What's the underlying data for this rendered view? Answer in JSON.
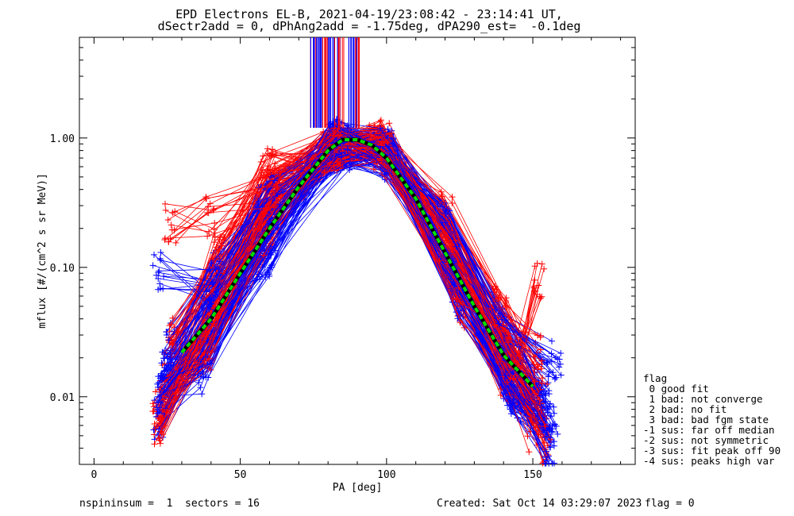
{
  "title": {
    "line1": "EPD Electrons EL-B, 2021-04-19/23:08:42 - 23:14:41 UT,",
    "line2": "dSectr2add = 0, dPhAng2add = -1.75deg, dPA290_est=  -0.1deg"
  },
  "footer": {
    "left": "nspininsum =  1  sectors = 16",
    "center": "Created: Sat Oct 14 03:29:07 2023",
    "right": "flag = 0"
  },
  "legend": {
    "title": "flag",
    "items": [
      " 0 good fit",
      " 1 bad: not converge",
      " 2 bad: no fit",
      " 3 bad: bad fgm state",
      "-1 sus: far off median",
      "-2 sus: not symmetric",
      "-3 sus: fit peak off 90",
      "-4 sus: peaks high var"
    ]
  },
  "colors": {
    "series_red": "#ff0000",
    "series_blue": "#0000ff",
    "fit_green": "#00dd00",
    "fit_black": "#000000"
  },
  "chart_data": {
    "type": "line",
    "xlabel": "PA [deg]",
    "ylabel": "mflux [#/(cm^2 s sr MeV)]",
    "xlim": [
      -5,
      185
    ],
    "ylim": [
      0.003,
      6.0
    ],
    "yscale": "log",
    "xticks": [
      0,
      50,
      100,
      150
    ],
    "xtick_labels": [
      "0",
      "50",
      "100",
      "150"
    ],
    "yticks": [
      0.01,
      0.1,
      1.0
    ],
    "ytick_labels": [
      "0.01",
      "0.10",
      "1.00"
    ],
    "series": [
      {
        "color": "red",
        "x": [
          22,
          38,
          60,
          82,
          98,
          120,
          140,
          152
        ],
        "y": [
          0.0065,
          0.024,
          0.18,
          0.85,
          0.9,
          0.16,
          0.022,
          0.006
        ]
      },
      {
        "color": "blue",
        "x": [
          23,
          40,
          61,
          83,
          100,
          122,
          141,
          153
        ],
        "y": [
          0.012,
          0.05,
          0.3,
          0.9,
          0.78,
          0.13,
          0.016,
          0.011
        ]
      },
      {
        "color": "red",
        "x": [
          24,
          39,
          58,
          84,
          97,
          119,
          138,
          151
        ],
        "y": [
          0.009,
          0.035,
          0.22,
          0.8,
          0.85,
          0.2,
          0.03,
          0.008
        ]
      },
      {
        "color": "blue",
        "x": [
          25,
          41,
          62,
          82,
          101,
          123,
          142,
          154
        ],
        "y": [
          0.016,
          0.07,
          0.35,
          0.95,
          0.72,
          0.1,
          0.012,
          0.007
        ]
      },
      {
        "color": "red",
        "x": [
          26,
          42,
          59,
          85,
          99,
          121,
          139,
          150
        ],
        "y": [
          0.02,
          0.1,
          0.5,
          0.9,
          0.88,
          0.24,
          0.04,
          0.012
        ]
      },
      {
        "color": "blue",
        "x": [
          22,
          39,
          60,
          86,
          100,
          124,
          143,
          155
        ],
        "y": [
          0.007,
          0.03,
          0.15,
          0.82,
          0.7,
          0.08,
          0.01,
          0.005
        ]
      },
      {
        "color": "red",
        "x": [
          27,
          43,
          61,
          80,
          96,
          118,
          137,
          152
        ],
        "y": [
          0.03,
          0.13,
          0.6,
          0.78,
          0.95,
          0.3,
          0.05,
          0.02
        ]
      },
      {
        "color": "blue",
        "x": [
          24,
          40,
          58,
          81,
          102,
          125,
          144,
          156
        ],
        "y": [
          0.011,
          0.045,
          0.12,
          0.88,
          0.68,
          0.06,
          0.009,
          0.004
        ]
      },
      {
        "color": "red",
        "x": [
          23,
          41,
          62,
          84,
          100,
          120,
          140,
          153
        ],
        "y": [
          0.008,
          0.06,
          0.4,
          0.86,
          0.82,
          0.18,
          0.025,
          0.009
        ]
      },
      {
        "color": "blue",
        "x": [
          25,
          38,
          59,
          83,
          99,
          121,
          145,
          157
        ],
        "y": [
          0.014,
          0.02,
          0.1,
          0.92,
          0.8,
          0.2,
          0.02,
          0.006
        ]
      },
      {
        "color": "red",
        "x": [
          22,
          40,
          57,
          82,
          98,
          122,
          141,
          150
        ],
        "y": [
          0.006,
          0.04,
          0.25,
          0.84,
          0.92,
          0.11,
          0.015,
          0.005
        ]
      },
      {
        "color": "blue",
        "x": [
          26,
          42,
          61,
          85,
          101,
          119,
          139,
          154
        ],
        "y": [
          0.025,
          0.09,
          0.45,
          0.85,
          0.75,
          0.25,
          0.035,
          0.013
        ]
      },
      {
        "color": "blue",
        "x": [
          23,
          37,
          60,
          84,
          100,
          123,
          142,
          152
        ],
        "y": [
          0.01,
          0.015,
          0.2,
          0.9,
          0.76,
          0.09,
          0.011,
          0.008
        ]
      },
      {
        "color": "red",
        "x": [
          25,
          39,
          63,
          83,
          97,
          124,
          138,
          155
        ],
        "y": [
          0.012,
          0.028,
          0.55,
          0.8,
          0.93,
          0.07,
          0.045,
          0.004
        ]
      },
      {
        "color": "blue",
        "x": [
          22,
          41,
          58,
          86,
          102,
          120,
          140,
          158
        ],
        "y": [
          0.1,
          0.07,
          0.3,
          0.83,
          0.65,
          0.22,
          0.03,
          0.02
        ]
      },
      {
        "color": "red",
        "x": [
          26,
          40,
          60,
          81,
          99,
          126,
          143,
          152
        ],
        "y": [
          0.23,
          0.25,
          0.35,
          0.82,
          0.87,
          0.05,
          0.012,
          0.075
        ]
      }
    ],
    "fit": {
      "x": [
        30,
        40,
        50,
        60,
        70,
        80,
        85,
        90,
        95,
        100,
        110,
        120,
        130,
        140,
        150
      ],
      "y": [
        0.022,
        0.04,
        0.09,
        0.2,
        0.42,
        0.8,
        0.97,
        0.97,
        0.88,
        0.7,
        0.34,
        0.13,
        0.05,
        0.021,
        0.012
      ]
    },
    "spikes": {
      "x_min": 74,
      "x_max": 92,
      "y_from": 1.2,
      "y_top": 6.0
    }
  }
}
